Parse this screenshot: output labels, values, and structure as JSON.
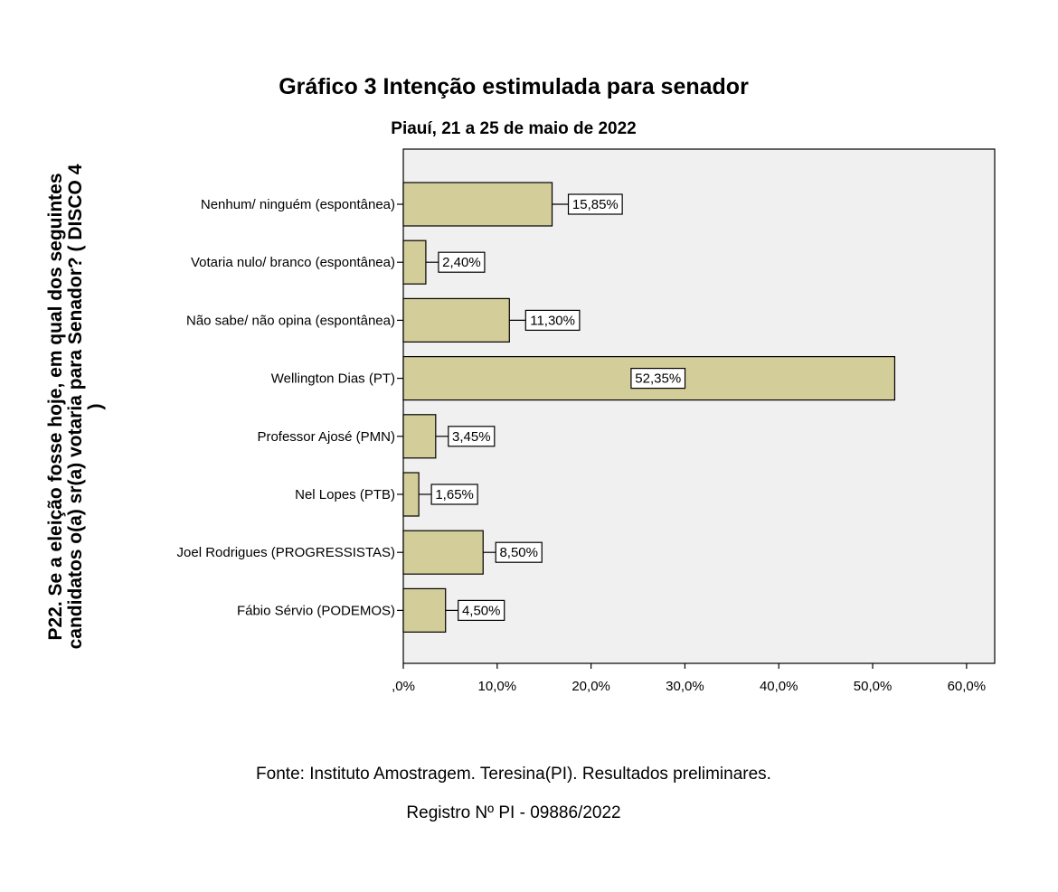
{
  "chart_data": {
    "type": "bar",
    "orientation": "horizontal",
    "title": "Gráfico 3 Intenção estimulada para senador",
    "subtitle": "Piauí, 21 a 25 de maio de 2022",
    "ylabel": "P22. Se a eleição fosse hoje, em qual dos seguintes candidatos o(a) sr(a) votaria para Senador? (   DISCO 4   )",
    "xlabel": "",
    "categories": [
      "Nenhum/ ninguém (espontânea)",
      "Votaria nulo/ branco (espontânea)",
      "Não sabe/ não opina (espontânea)",
      "Wellington Dias (PT)",
      "Professor Ajosé (PMN)",
      "Nel Lopes (PTB)",
      "Joel Rodrigues (PROGRESSISTAS)",
      "Fábio Sérvio (PODEMOS)"
    ],
    "values": [
      15.85,
      2.4,
      11.3,
      52.35,
      3.45,
      1.65,
      8.5,
      4.5
    ],
    "value_labels": [
      "15,85%",
      "2,40%",
      "11,30%",
      "52,35%",
      "3,45%",
      "1,65%",
      "8,50%",
      "4,50%"
    ],
    "xlim": [
      0,
      63
    ],
    "xticks": [
      0,
      10,
      20,
      30,
      40,
      50,
      60
    ],
    "xtick_labels": [
      ",0%",
      "10,0%",
      "20,0%",
      "30,0%",
      "40,0%",
      "50,0%",
      "60,0%"
    ],
    "grid": false,
    "colors": {
      "bar": "#d3cd9a",
      "plot_bg": "#f0f0f0",
      "outline": "#000000"
    }
  },
  "source_note": {
    "line1": "Fonte: Instituto Amostragem. Teresina(PI). Resultados preliminares.",
    "line2": "Registro Nº PI - 09886/2022"
  }
}
